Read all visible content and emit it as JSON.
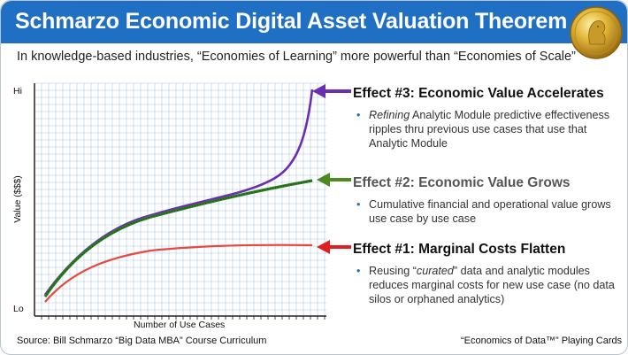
{
  "header": {
    "title": "Schmarzo Economic Digital Asset Valuation Theorem"
  },
  "subtitle": "In knowledge-based industries, “Economies of Learning” more powerful than “Economies of Scale”",
  "chart": {
    "y_top_label": "Hi",
    "y_bottom_label": "Lo",
    "y_axis_label": "Value ($$$)",
    "x_axis_label": "Number of Use Cases"
  },
  "effects": [
    {
      "title": "Effect #3: Economic Value Accelerates",
      "body_em": "Refining",
      "body_rest": " Analytic Module predictive effectiveness ripples thru previous use cases that use that Analytic Module",
      "color": "#6a2fb0"
    },
    {
      "title": "Effect #2: Economic Value Grows",
      "body": "Cumulative financial and operational value grows use case by use case",
      "color": "#4b8a1e"
    },
    {
      "title": "Effect #1: Marginal Costs Flatten",
      "body_pre": "Reusing “",
      "body_em": "curated",
      "body_post": "” data and analytic modules reduces marginal costs for new use case (no data silos or orphaned analytics)",
      "color": "#e02020"
    }
  ],
  "footer": {
    "source": "Source: Bill Schmarzo “Big Data MBA” Course Curriculum",
    "brand": "“Economics of Data™” Playing Cards"
  },
  "colors": {
    "title_bar": "#1f6fc4",
    "grid": "#aac7e6",
    "accelerates": "#6a2fb0",
    "grows": "#2f7d20",
    "costs": "#e8493f"
  }
}
